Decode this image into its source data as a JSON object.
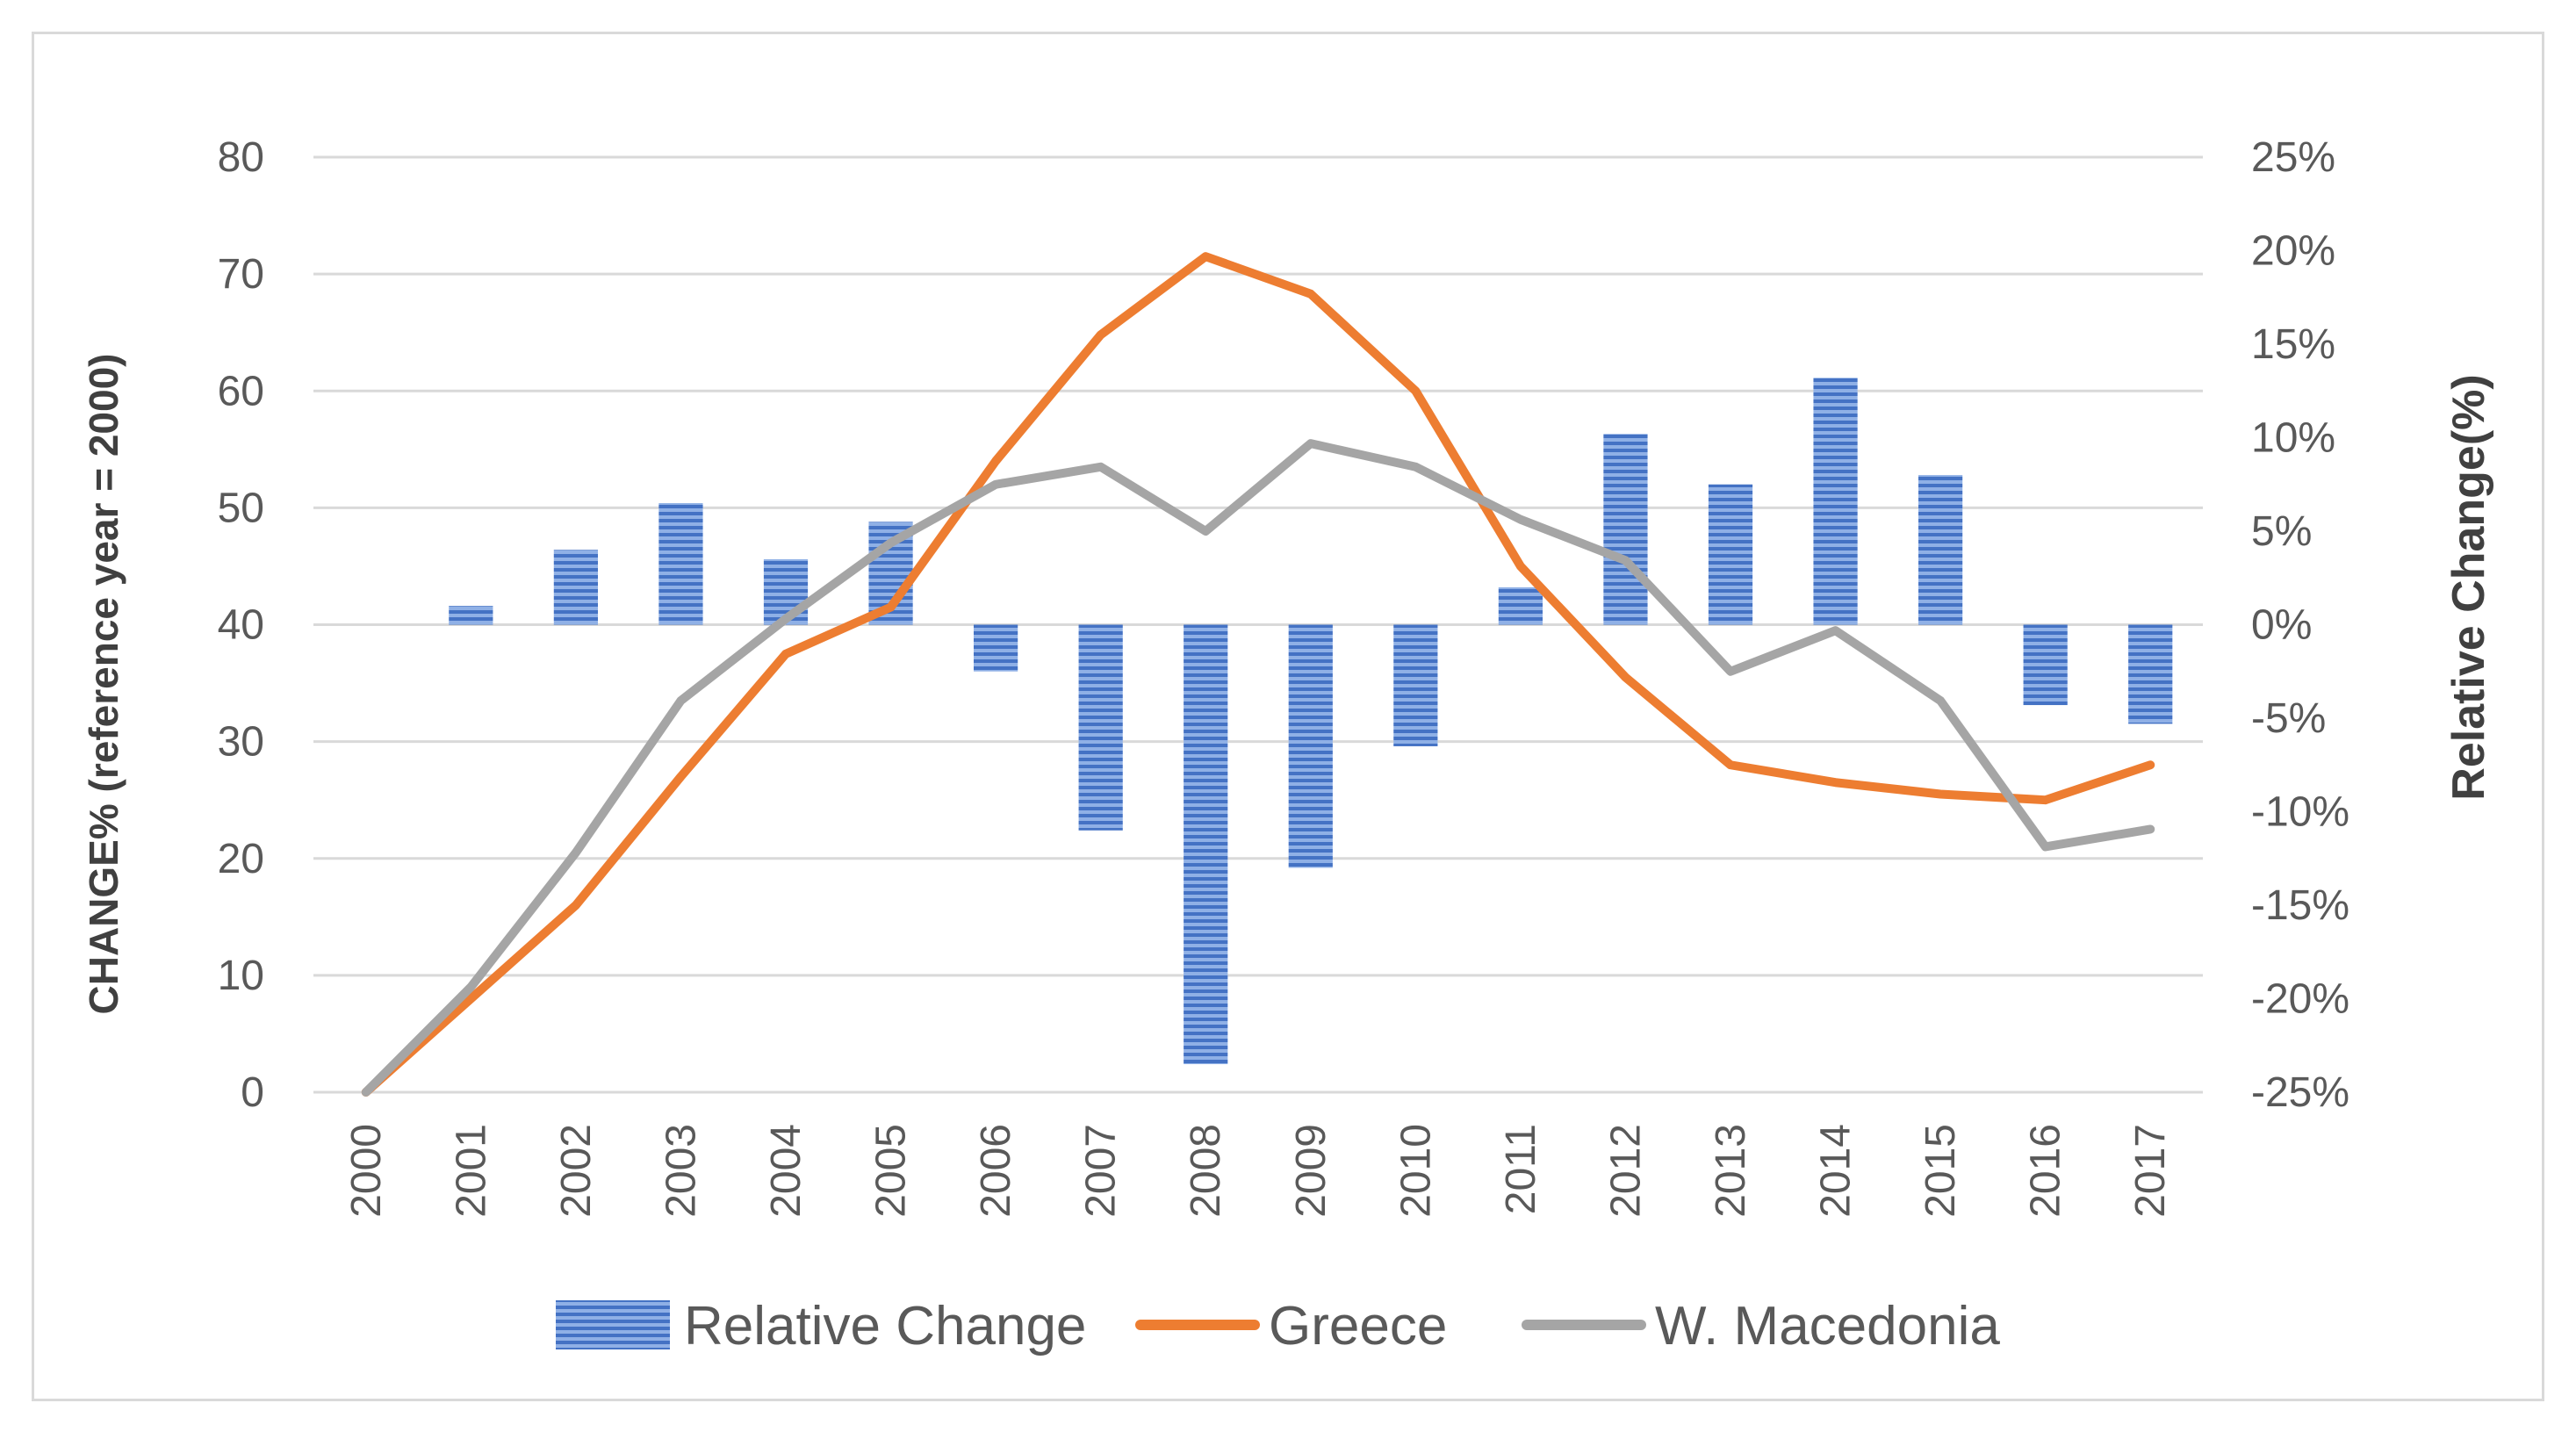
{
  "chart_data": {
    "type": "bar+line (dual axis)",
    "categories": [
      "2000",
      "2001",
      "2002",
      "2003",
      "2004",
      "2005",
      "2006",
      "2007",
      "2008",
      "2009",
      "2010",
      "2011",
      "2012",
      "2013",
      "2014",
      "2015",
      "2016",
      "2017"
    ],
    "left_axis": {
      "title": "CHANGE% (reference year = 2000)",
      "min": 0,
      "max": 80,
      "step": 10,
      "ticks": [
        "0",
        "10",
        "20",
        "30",
        "40",
        "50",
        "60",
        "70",
        "80"
      ]
    },
    "right_axis": {
      "title": "Relative Change(%)",
      "min": -25,
      "max": 25,
      "step": 5,
      "ticks": [
        "-25%",
        "-20%",
        "-15%",
        "-10%",
        "-5%",
        "0%",
        "5%",
        "10%",
        "15%",
        "20%",
        "25%"
      ]
    },
    "series": [
      {
        "name": "Relative Change",
        "type": "bar",
        "axis": "right",
        "color": "#4472c4",
        "values": [
          null,
          1.0,
          4.0,
          6.5,
          3.5,
          5.5,
          -2.5,
          -11.0,
          -23.5,
          -13.0,
          -6.5,
          2.0,
          10.2,
          7.5,
          13.2,
          8.0,
          -4.3,
          -5.3
        ]
      },
      {
        "name": "Greece",
        "type": "line",
        "axis": "left",
        "color": "#ed7d31",
        "values": [
          0,
          8,
          16,
          27,
          37.5,
          41.5,
          54,
          64.8,
          71.5,
          68.3,
          60,
          45,
          35.5,
          28,
          26.5,
          25.5,
          25,
          28
        ]
      },
      {
        "name": "W. Macedonia",
        "type": "line",
        "axis": "left",
        "color": "#a5a5a5",
        "values": [
          0,
          9,
          20.5,
          33.5,
          40.5,
          47,
          52,
          53.5,
          48,
          55.5,
          53.5,
          49,
          45.5,
          36,
          39.5,
          33.5,
          21,
          22.5
        ]
      }
    ],
    "legend": [
      "Relative Change",
      "Greece",
      "W. Macedonia"
    ],
    "legend_position": "bottom",
    "grid": true
  }
}
